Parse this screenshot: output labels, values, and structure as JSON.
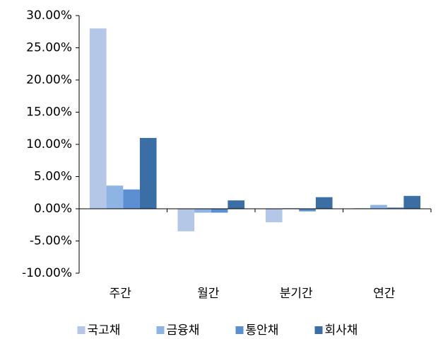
{
  "chart_data": {
    "type": "bar",
    "categories": [
      "주간",
      "월간",
      "분기간",
      "연간"
    ],
    "series": [
      {
        "name": "국고채",
        "color": "#b4c7e7",
        "values": [
          28.0,
          -3.5,
          -2.1,
          0.1
        ]
      },
      {
        "name": "금융채",
        "color": "#8eb4e3",
        "values": [
          3.6,
          -0.6,
          0.1,
          0.6
        ]
      },
      {
        "name": "통안채",
        "color": "#5b8fd1",
        "values": [
          3.0,
          -0.6,
          -0.4,
          0.2
        ]
      },
      {
        "name": "회사채",
        "color": "#3c6ea6",
        "values": [
          11.0,
          1.3,
          1.8,
          2.0
        ]
      }
    ],
    "ylim": [
      -10,
      30
    ],
    "yticks": [
      {
        "value": -10,
        "label": "-10.00%"
      },
      {
        "value": -5,
        "label": "-5.00%"
      },
      {
        "value": 0,
        "label": "0.00%"
      },
      {
        "value": 5,
        "label": "5.00%"
      },
      {
        "value": 10,
        "label": "10.00%"
      },
      {
        "value": 15,
        "label": "15.00%"
      },
      {
        "value": 20,
        "label": "20.00%"
      },
      {
        "value": 25,
        "label": "25.00%"
      },
      {
        "value": 30,
        "label": "30.00%"
      }
    ],
    "grid": false,
    "legend": "bottom"
  }
}
